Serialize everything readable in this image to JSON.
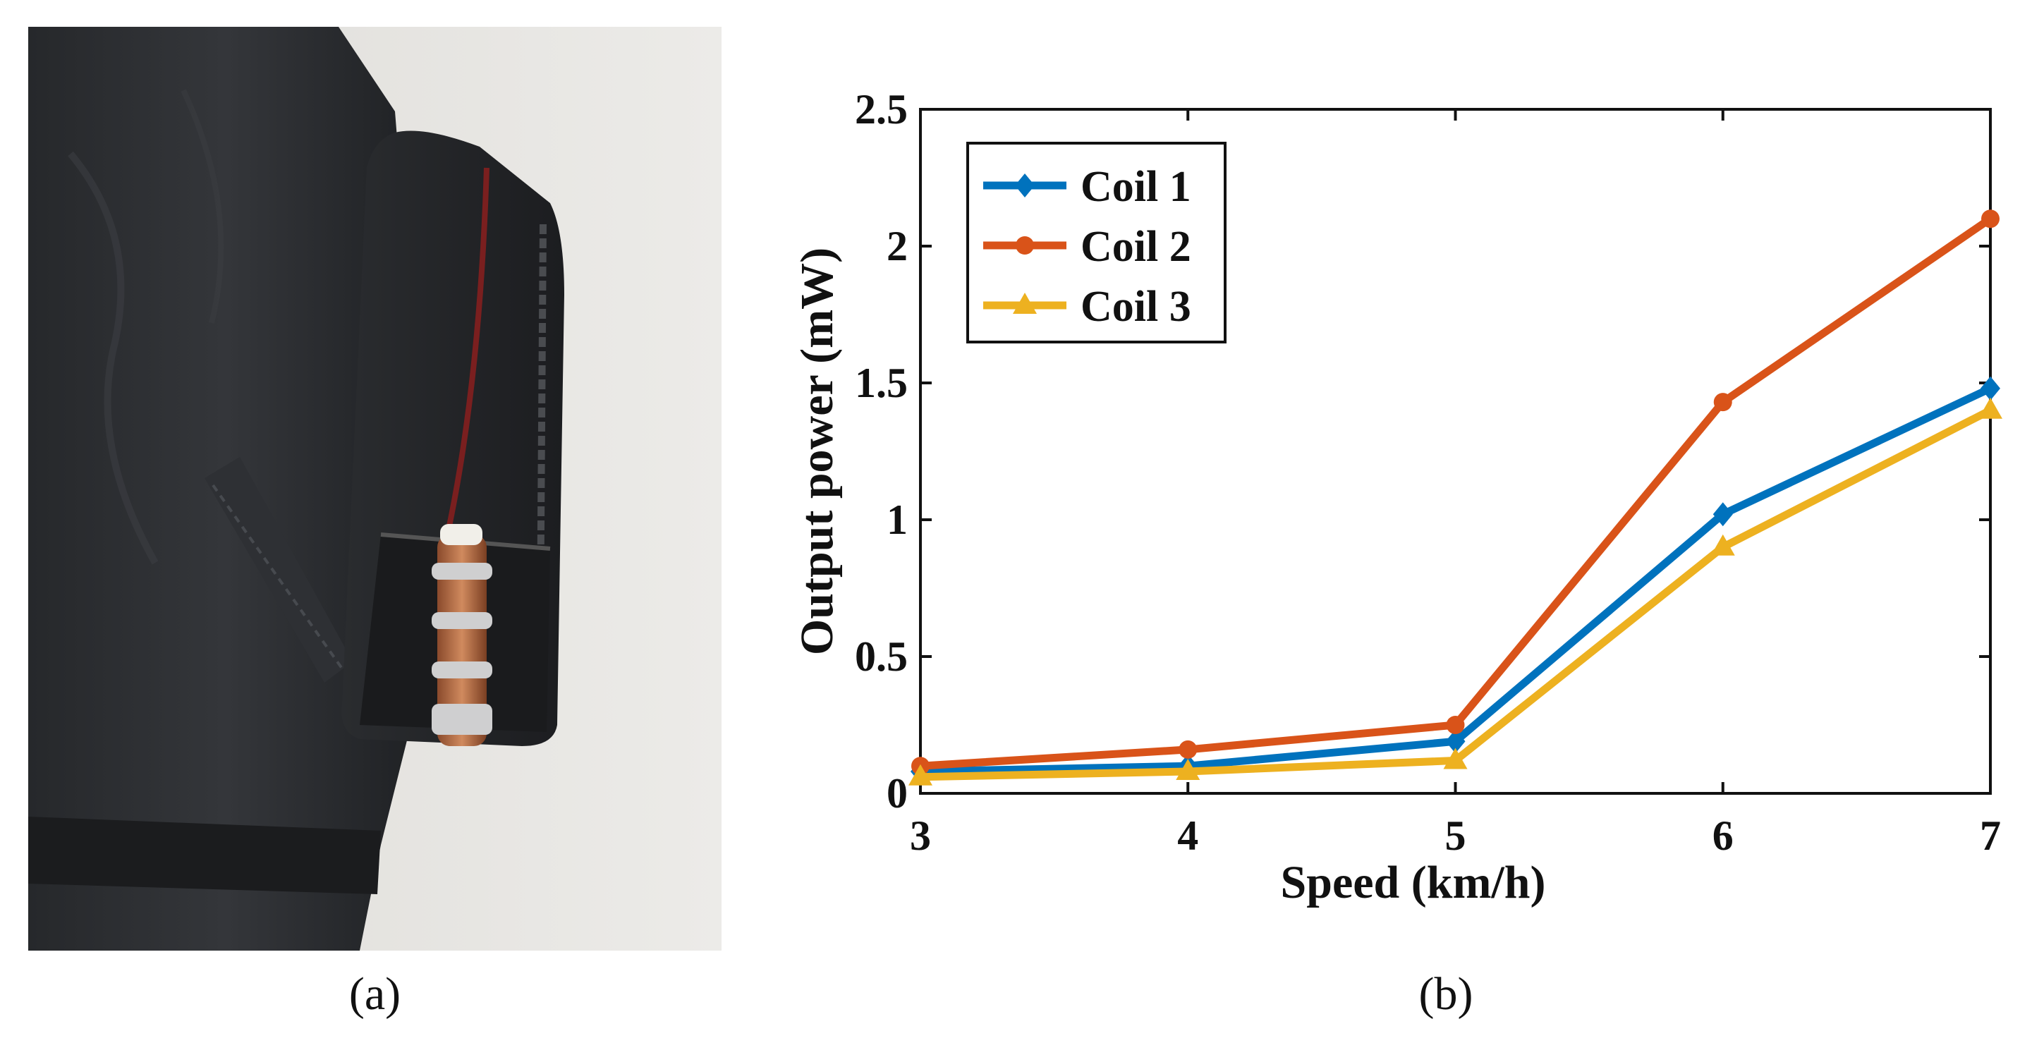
{
  "captions": {
    "a": "(a)",
    "b": "(b)"
  },
  "chart_data": {
    "type": "line",
    "xlabel": "Speed (km/h)",
    "ylabel": "Output power (mW)",
    "x": [
      3,
      4,
      5,
      6,
      7
    ],
    "xlim": [
      3,
      7
    ],
    "ylim": [
      0,
      2.5
    ],
    "xticks": [
      "3",
      "4",
      "5",
      "6",
      "7"
    ],
    "yticks": [
      "0",
      "0.5",
      "1",
      "1.5",
      "2",
      "2.5"
    ],
    "grid": false,
    "legend_position": "top-left",
    "series": [
      {
        "name": "Coil 1",
        "values": [
          0.08,
          0.1,
          0.19,
          1.02,
          1.48
        ],
        "color": "#0072BD",
        "marker": "diamond"
      },
      {
        "name": "Coil 2",
        "values": [
          0.1,
          0.16,
          0.25,
          1.43,
          2.1
        ],
        "color": "#D95319",
        "marker": "circle"
      },
      {
        "name": "Coil 3",
        "values": [
          0.06,
          0.08,
          0.12,
          0.9,
          1.4
        ],
        "color": "#EDB120",
        "marker": "triangle"
      }
    ]
  }
}
